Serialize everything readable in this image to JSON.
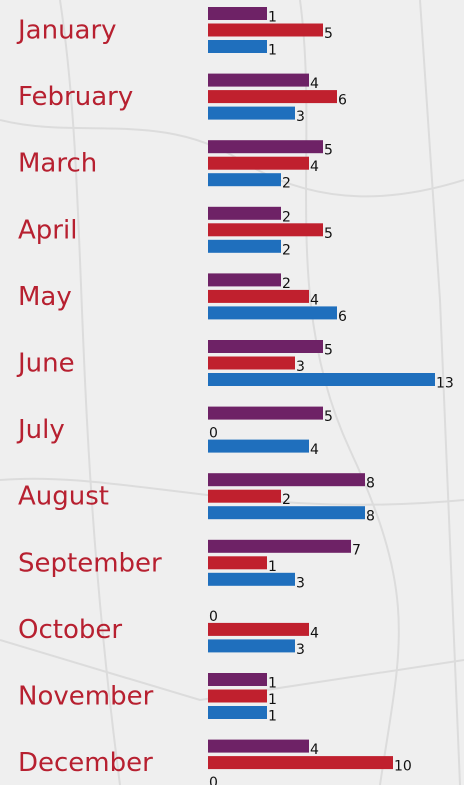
{
  "chart_data": {
    "type": "bar",
    "orientation": "horizontal",
    "categories": [
      "January",
      "February",
      "March",
      "April",
      "May",
      "June",
      "July",
      "August",
      "September",
      "October",
      "November",
      "December"
    ],
    "series": [
      {
        "color": "#6e2266",
        "values": [
          1,
          4,
          5,
          2,
          2,
          5,
          5,
          8,
          7,
          0,
          1,
          4
        ]
      },
      {
        "color": "#c0202e",
        "values": [
          5,
          6,
          4,
          5,
          4,
          3,
          0,
          2,
          1,
          4,
          1,
          10
        ]
      },
      {
        "color": "#1f6fbd",
        "values": [
          1,
          3,
          2,
          2,
          6,
          13,
          4,
          8,
          3,
          3,
          1,
          0
        ]
      }
    ]
  }
}
